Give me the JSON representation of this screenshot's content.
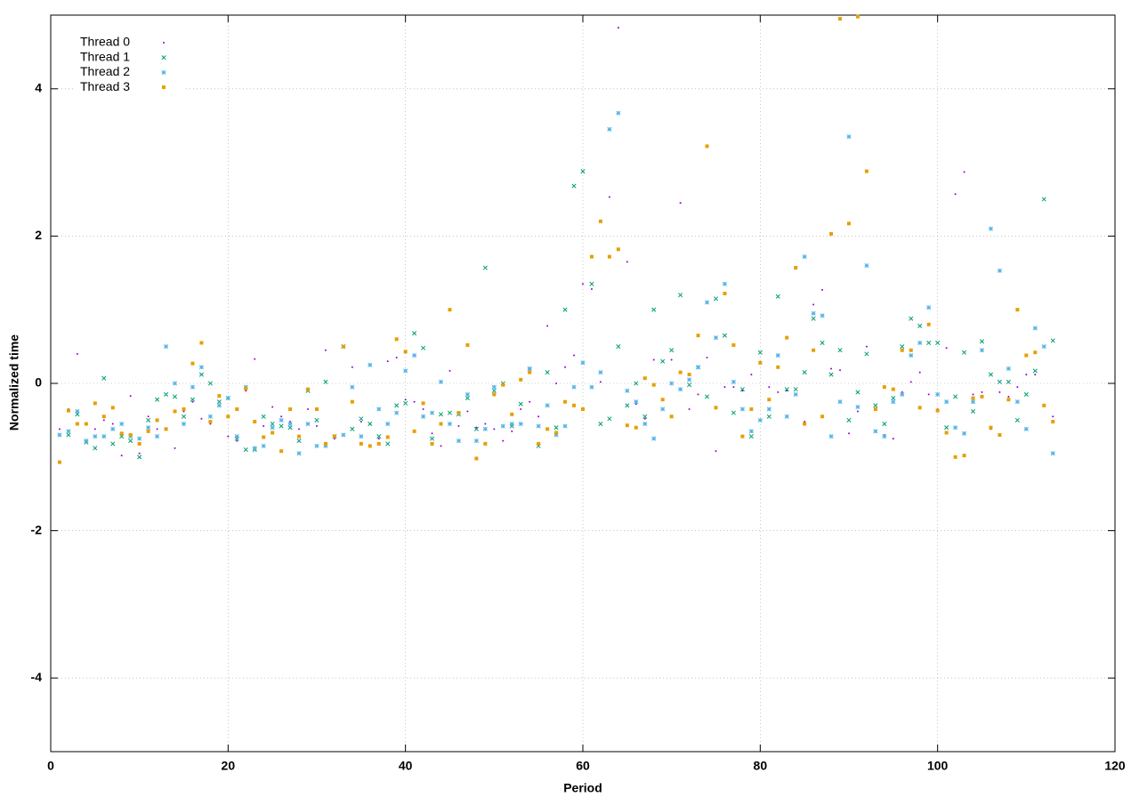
{
  "chart_data": {
    "type": "scatter",
    "xlabel": "Period",
    "ylabel": "Normalized time",
    "xlim": [
      0,
      120
    ],
    "ylim": [
      -5,
      5
    ],
    "xticks": [
      0,
      20,
      40,
      60,
      80,
      100,
      120
    ],
    "yticks": [
      -4,
      -2,
      0,
      2,
      4
    ],
    "grid": true,
    "legend": "top-left",
    "x": [
      1,
      2,
      3,
      4,
      5,
      6,
      7,
      8,
      9,
      10,
      11,
      12,
      13,
      14,
      15,
      16,
      17,
      18,
      19,
      20,
      21,
      22,
      23,
      24,
      25,
      26,
      27,
      28,
      29,
      30,
      31,
      32,
      33,
      34,
      35,
      36,
      37,
      38,
      39,
      40,
      41,
      42,
      43,
      44,
      45,
      46,
      47,
      48,
      49,
      50,
      51,
      52,
      53,
      54,
      55,
      56,
      57,
      58,
      59,
      60,
      61,
      62,
      63,
      64,
      65,
      66,
      67,
      68,
      69,
      70,
      71,
      72,
      73,
      74,
      75,
      76,
      77,
      78,
      79,
      80,
      81,
      82,
      83,
      84,
      85,
      86,
      87,
      88,
      89,
      90,
      91,
      92,
      93,
      94,
      95,
      96,
      97,
      98,
      99,
      100,
      101,
      102,
      103,
      104,
      105,
      106,
      107,
      108,
      109,
      110,
      111,
      112,
      113
    ],
    "series": [
      {
        "name": "Thread 0",
        "color": "#9400d3",
        "marker": "dot",
        "values": [
          -0.62,
          -0.35,
          0.4,
          -0.78,
          -0.62,
          -0.5,
          -0.55,
          -0.98,
          -0.17,
          -0.95,
          -0.45,
          -0.62,
          -0.62,
          -0.88,
          -0.38,
          -0.25,
          -0.48,
          -0.55,
          -0.3,
          -0.72,
          -0.78,
          -0.1,
          0.33,
          -0.58,
          -0.32,
          -0.45,
          -0.52,
          -0.62,
          -0.35,
          -0.58,
          0.45,
          -0.75,
          0.5,
          0.22,
          -0.52,
          -0.55,
          -0.75,
          0.3,
          0.35,
          -0.22,
          -0.25,
          -0.35,
          -0.68,
          -0.85,
          0.17,
          -0.58,
          -0.38,
          -0.6,
          -0.55,
          -0.62,
          -0.78,
          -0.65,
          -0.35,
          -0.25,
          -0.45,
          0.78,
          0.0,
          0.22,
          0.38,
          1.35,
          1.28,
          0.02,
          2.53,
          4.83,
          1.65,
          -0.28,
          -0.48,
          0.32,
          -0.35,
          0.32,
          2.45,
          -0.35,
          -0.15,
          0.35,
          -0.92,
          -0.05,
          -0.05,
          -0.1,
          0.12,
          -0.5,
          -0.05,
          -0.12,
          -0.1,
          -0.15,
          -0.52,
          1.07,
          1.27,
          0.2,
          0.18,
          -0.68,
          -0.38,
          0.5,
          -0.35,
          -0.7,
          -0.75,
          -0.12,
          0.02,
          0.15,
          -0.15,
          -0.35,
          0.48,
          2.57,
          2.87,
          -0.15,
          -0.12,
          -0.62,
          -0.12,
          -0.18,
          -0.05,
          0.12,
          0.12,
          0.5,
          -0.45
        ]
      },
      {
        "name": "Thread 1",
        "color": "#009e73",
        "marker": "cross",
        "values": [
          null,
          -0.7,
          -0.42,
          -0.8,
          -0.88,
          0.07,
          -0.82,
          -0.72,
          -0.78,
          -1.0,
          -0.5,
          -0.22,
          -0.15,
          -0.18,
          -0.45,
          -0.22,
          0.12,
          0.0,
          -0.25,
          -0.2,
          -0.75,
          -0.9,
          -0.9,
          -0.45,
          -0.55,
          -0.58,
          -0.6,
          -0.78,
          -0.1,
          -0.5,
          0.02,
          -0.72,
          0.5,
          -0.62,
          -0.48,
          -0.55,
          -0.72,
          -0.82,
          -0.3,
          -0.27,
          0.68,
          0.48,
          -0.75,
          -0.42,
          -0.4,
          -0.42,
          -0.2,
          -0.62,
          1.57,
          -0.1,
          0.0,
          -0.58,
          -0.28,
          0.2,
          -0.85,
          0.15,
          -0.6,
          1.0,
          2.68,
          2.88,
          1.35,
          -0.55,
          -0.48,
          0.5,
          -0.3,
          0.0,
          -0.45,
          1.0,
          0.3,
          0.45,
          1.2,
          -0.02,
          0.22,
          -0.18,
          1.15,
          0.65,
          -0.4,
          -0.08,
          -0.72,
          0.42,
          -0.45,
          1.18,
          -0.08,
          -0.08,
          0.15,
          0.88,
          0.55,
          0.12,
          0.45,
          -0.5,
          -0.12,
          0.4,
          -0.3,
          -0.55,
          -0.2,
          0.5,
          0.88,
          0.78,
          0.55,
          0.55,
          -0.6,
          -0.18,
          0.42,
          -0.38,
          0.57,
          0.12,
          0.02,
          0.02,
          -0.5,
          -0.15,
          0.17,
          2.5,
          0.58
        ]
      },
      {
        "name": "Thread 2",
        "color": "#56b4e9",
        "marker": "star",
        "values": [
          -0.7,
          -0.65,
          -0.38,
          -0.78,
          -0.72,
          -0.72,
          -0.62,
          -0.55,
          -0.72,
          -0.75,
          -0.6,
          -0.72,
          0.5,
          0.0,
          -0.55,
          -0.05,
          0.22,
          -0.45,
          -0.3,
          -0.2,
          -0.72,
          -0.05,
          -0.88,
          -0.85,
          -0.6,
          -0.5,
          -0.55,
          -0.95,
          -0.55,
          -0.85,
          -0.85,
          -0.72,
          -0.7,
          -0.05,
          -0.72,
          0.25,
          -0.35,
          -0.55,
          -0.4,
          0.17,
          0.38,
          -0.45,
          -0.4,
          0.02,
          -0.55,
          -0.78,
          -0.15,
          -0.78,
          -0.62,
          -0.05,
          -0.58,
          -0.55,
          -0.55,
          0.2,
          -0.58,
          -0.3,
          -0.7,
          -0.58,
          -0.05,
          0.28,
          -0.05,
          0.15,
          3.45,
          3.67,
          -0.1,
          -0.25,
          -0.55,
          -0.75,
          -0.35,
          0.0,
          -0.08,
          0.05,
          0.22,
          1.1,
          0.62,
          1.35,
          0.02,
          -0.35,
          -0.65,
          -0.5,
          -0.35,
          0.38,
          -0.45,
          -0.15,
          1.72,
          0.95,
          0.92,
          -0.72,
          -0.25,
          3.35,
          -0.32,
          1.6,
          -0.65,
          -0.72,
          -0.25,
          -0.15,
          0.38,
          0.55,
          1.03,
          -0.15,
          -0.25,
          -0.6,
          -0.68,
          -0.25,
          0.45,
          2.1,
          1.53,
          0.2,
          -0.25,
          -0.62,
          0.75,
          0.5,
          -0.95
        ]
      },
      {
        "name": "Thread 3",
        "color": "#e69f00",
        "marker": "square",
        "values": [
          -1.07,
          -0.37,
          -0.55,
          -0.55,
          -0.27,
          -0.45,
          -0.33,
          -0.68,
          -0.7,
          -0.82,
          -0.65,
          -0.5,
          -0.62,
          -0.38,
          -0.35,
          0.27,
          0.55,
          -0.52,
          -0.17,
          -0.45,
          -0.35,
          -0.07,
          -0.52,
          -0.73,
          -0.67,
          -0.92,
          -0.35,
          -0.72,
          -0.08,
          -0.35,
          -0.82,
          -0.72,
          0.5,
          -0.25,
          -0.82,
          -0.85,
          -0.82,
          -0.73,
          0.6,
          0.43,
          -0.65,
          -0.27,
          -0.82,
          -0.55,
          1.0,
          -0.4,
          0.52,
          -1.02,
          -0.82,
          -0.15,
          -0.02,
          -0.42,
          0.05,
          0.15,
          -0.82,
          -0.62,
          -0.67,
          -0.25,
          -0.3,
          -0.35,
          1.72,
          2.2,
          1.72,
          1.82,
          -0.57,
          -0.6,
          0.07,
          -0.02,
          -0.22,
          -0.45,
          0.15,
          0.12,
          0.65,
          3.22,
          -0.33,
          1.22,
          0.52,
          -0.72,
          -0.35,
          0.28,
          -0.22,
          0.22,
          0.62,
          1.57,
          -0.55,
          0.45,
          -0.45,
          2.03,
          4.95,
          2.17,
          4.98,
          2.88,
          -0.35,
          -0.05,
          -0.08,
          0.45,
          0.45,
          -0.33,
          0.8,
          -0.37,
          -0.67,
          -1.0,
          -0.98,
          -0.2,
          -0.18,
          -0.6,
          -0.7,
          -0.22,
          1.0,
          0.38,
          0.42,
          -0.3,
          -0.52
        ]
      }
    ]
  }
}
